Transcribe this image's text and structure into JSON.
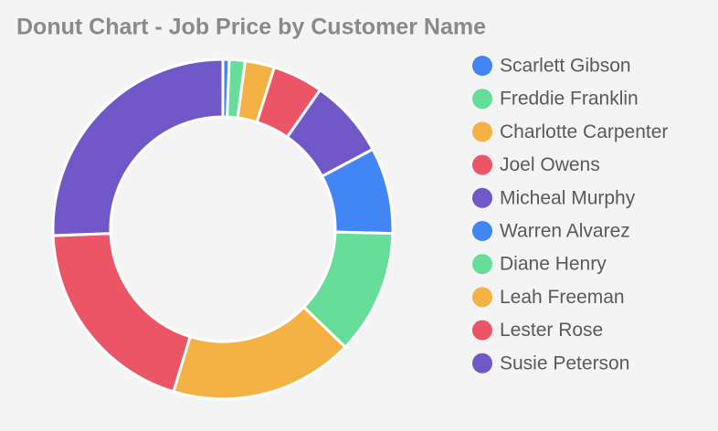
{
  "chart_data": {
    "type": "donut",
    "title": "Donut Chart - Job Price by Customer Name",
    "categories": [
      "Scarlett Gibson",
      "Freddie Franklin",
      "Charlotte Carpenter",
      "Joel Owens",
      "Micheal Murphy",
      "Warren Alvarez",
      "Diane Henry",
      "Leah Freeman",
      "Lester Rose",
      "Susie Peterson"
    ],
    "values": [
      0.6,
      1.5,
      2.8,
      4.8,
      7.5,
      8.2,
      11.8,
      17.5,
      19.7,
      25.6
    ],
    "colors": [
      "#4285f4",
      "#66dd99",
      "#f4b244",
      "#eb5566",
      "#7058c8",
      "#4285f4",
      "#66dd99",
      "#f4b244",
      "#eb5566",
      "#7058c8"
    ],
    "legend": "right"
  }
}
